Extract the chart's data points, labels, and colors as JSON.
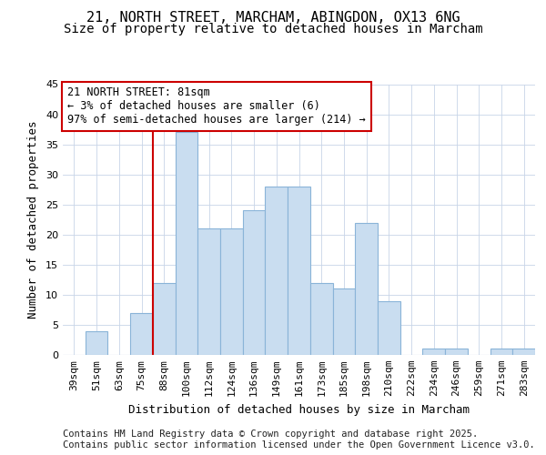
{
  "title_line1": "21, NORTH STREET, MARCHAM, ABINGDON, OX13 6NG",
  "title_line2": "Size of property relative to detached houses in Marcham",
  "xlabel": "Distribution of detached houses by size in Marcham",
  "ylabel": "Number of detached properties",
  "footer_line1": "Contains HM Land Registry data © Crown copyright and database right 2025.",
  "footer_line2": "Contains public sector information licensed under the Open Government Licence v3.0.",
  "bin_labels": [
    "39sqm",
    "51sqm",
    "63sqm",
    "75sqm",
    "88sqm",
    "100sqm",
    "112sqm",
    "124sqm",
    "136sqm",
    "149sqm",
    "161sqm",
    "173sqm",
    "185sqm",
    "198sqm",
    "210sqm",
    "222sqm",
    "234sqm",
    "246sqm",
    "259sqm",
    "271sqm",
    "283sqm"
  ],
  "bar_values": [
    0,
    4,
    0,
    7,
    12,
    37,
    21,
    21,
    24,
    28,
    28,
    12,
    11,
    22,
    9,
    0,
    1,
    1,
    0,
    1,
    1
  ],
  "bar_color": "#c9ddf0",
  "bar_edgecolor": "#8ab4d8",
  "grid_color": "#c8d4e8",
  "plot_bg_color": "#ffffff",
  "fig_bg_color": "#ffffff",
  "vline_index": 4,
  "vline_color": "#cc0000",
  "annotation_text": "21 NORTH STREET: 81sqm\n← 3% of detached houses are smaller (6)\n97% of semi-detached houses are larger (214) →",
  "annotation_box_edgecolor": "#cc0000",
  "annotation_box_facecolor": "#ffffff",
  "ylim": [
    0,
    45
  ],
  "yticks": [
    0,
    5,
    10,
    15,
    20,
    25,
    30,
    35,
    40,
    45
  ],
  "title_fontsize": 11,
  "subtitle_fontsize": 10,
  "axis_label_fontsize": 9,
  "tick_fontsize": 8,
  "annotation_fontsize": 8.5,
  "footer_fontsize": 7.5
}
